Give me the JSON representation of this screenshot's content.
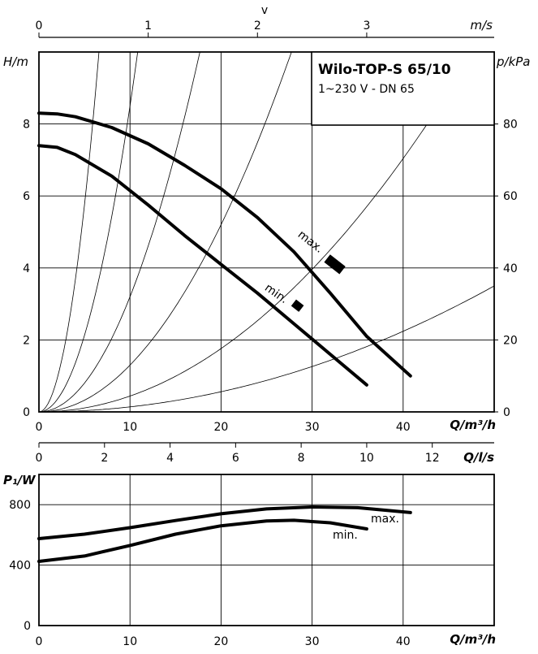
{
  "title_box": {
    "title": "Wilo-TOP-S 65/10",
    "subtitle": "1~230 V - DN 65"
  },
  "chart_data": [
    {
      "type": "line",
      "panel": "head",
      "x_axis": {
        "label": "Q/m³/h",
        "range": [
          0,
          50
        ],
        "ticks": [
          "0",
          "10",
          "20",
          "30",
          "40"
        ],
        "tick_values": [
          0,
          10,
          20,
          30,
          40
        ]
      },
      "top_axis_velocity": {
        "label": "m/s",
        "symbol": "v",
        "ticks": [
          "0",
          "1",
          "2",
          "3"
        ],
        "q_positions": [
          0,
          12,
          24,
          36
        ]
      },
      "y_axis": {
        "label": "H/m",
        "range": [
          0,
          10
        ],
        "ticks": [
          "0",
          "2",
          "4",
          "6",
          "8"
        ],
        "tick_values": [
          0,
          2,
          4,
          6,
          8
        ]
      },
      "y_axis_right": {
        "label": "p/kPa",
        "ticks": [
          "0",
          "20",
          "40",
          "60",
          "80"
        ],
        "h_positions": [
          0,
          2,
          4,
          6,
          8
        ]
      },
      "grid": true,
      "series": [
        {
          "name": "max.",
          "x": [
            0,
            2,
            4,
            8,
            12,
            16,
            20,
            24,
            28,
            32,
            36,
            40.8
          ],
          "y": [
            8.3,
            8.28,
            8.2,
            7.9,
            7.45,
            6.85,
            6.2,
            5.4,
            4.45,
            3.3,
            2.1,
            1.0
          ]
        },
        {
          "name": "min.",
          "x": [
            0,
            2,
            4,
            8,
            12,
            16,
            20,
            24,
            28,
            32,
            36
          ],
          "y": [
            7.4,
            7.35,
            7.15,
            6.55,
            5.75,
            4.9,
            4.1,
            3.3,
            2.45,
            1.6,
            0.75
          ]
        }
      ],
      "system_curve_k": [
        0.23,
        0.085,
        0.032,
        0.013,
        0.0044,
        0.0014
      ],
      "markers": [
        {
          "label": "max.",
          "q": 32.5,
          "h": 4.1
        },
        {
          "label": "min.",
          "q": 28.4,
          "h": 2.95
        }
      ]
    },
    {
      "type": "line",
      "panel": "power",
      "x_axis": {
        "label": "Q/m³/h",
        "range": [
          0,
          50
        ],
        "ticks": [
          "0",
          "10",
          "20",
          "30",
          "40"
        ],
        "tick_values": [
          0,
          10,
          20,
          30,
          40
        ]
      },
      "top_axis_flow": {
        "label": "Q/l/s",
        "ticks": [
          "0",
          "2",
          "4",
          "6",
          "8",
          "10",
          "12"
        ],
        "tick_values_ls": [
          0,
          2,
          4,
          6,
          8,
          10,
          12
        ]
      },
      "y_axis": {
        "label": "P₁/W",
        "range": [
          0,
          1000
        ],
        "ticks": [
          "0",
          "400",
          "800"
        ],
        "tick_values": [
          0,
          400,
          800
        ]
      },
      "grid": true,
      "series": [
        {
          "name": "max.",
          "x": [
            0,
            5,
            10,
            15,
            20,
            25,
            30,
            35,
            40.8
          ],
          "y": [
            575,
            605,
            648,
            695,
            740,
            772,
            785,
            780,
            748
          ]
        },
        {
          "name": "min.",
          "x": [
            0,
            5,
            10,
            15,
            20,
            25,
            28,
            32,
            36
          ],
          "y": [
            425,
            460,
            530,
            605,
            660,
            692,
            697,
            680,
            640
          ]
        }
      ]
    }
  ]
}
